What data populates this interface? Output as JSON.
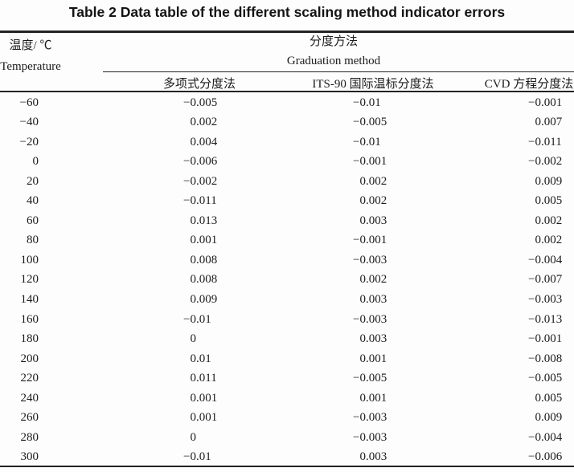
{
  "title": "Table 2 Data table of the different scaling method indicator errors",
  "colors": {
    "text": "#1c1c1c",
    "rule": "#232323",
    "bg": "#fdfdfd"
  },
  "table": {
    "temp_header_zh": "温度/ ℃",
    "temp_header_en": "Temperature",
    "spanner_zh": "分度方法",
    "spanner_en": "Graduation method",
    "method_columns": [
      "多项式分度法",
      "ITS-90 国际温标分度法",
      "CVD 方程分度法"
    ],
    "rows": [
      {
        "temp": "−60",
        "values": [
          "−0.005",
          "−0.01",
          "−0.001"
        ]
      },
      {
        "temp": "−40",
        "values": [
          "0.002",
          "−0.005",
          "0.007"
        ]
      },
      {
        "temp": "−20",
        "values": [
          "0.004",
          "−0.01",
          "−0.011"
        ]
      },
      {
        "temp": "0",
        "values": [
          "−0.006",
          "−0.001",
          "−0.002"
        ]
      },
      {
        "temp": "20",
        "values": [
          "−0.002",
          "0.002",
          "0.009"
        ]
      },
      {
        "temp": "40",
        "values": [
          "−0.011",
          "0.002",
          "0.005"
        ]
      },
      {
        "temp": "60",
        "values": [
          "0.013",
          "0.003",
          "0.002"
        ]
      },
      {
        "temp": "80",
        "values": [
          "0.001",
          "−0.001",
          "0.002"
        ]
      },
      {
        "temp": "100",
        "values": [
          "0.008",
          "−0.003",
          "−0.004"
        ]
      },
      {
        "temp": "120",
        "values": [
          "0.008",
          "0.002",
          "−0.007"
        ]
      },
      {
        "temp": "140",
        "values": [
          "0.009",
          "0.003",
          "−0.003"
        ]
      },
      {
        "temp": "160",
        "values": [
          "−0.01",
          "−0.003",
          "−0.013"
        ]
      },
      {
        "temp": "180",
        "values": [
          "0",
          "0.003",
          "−0.001"
        ]
      },
      {
        "temp": "200",
        "values": [
          "0.01",
          "0.001",
          "−0.008"
        ]
      },
      {
        "temp": "220",
        "values": [
          "0.011",
          "−0.005",
          "−0.005"
        ]
      },
      {
        "temp": "240",
        "values": [
          "0.001",
          "0.001",
          "0.005"
        ]
      },
      {
        "temp": "260",
        "values": [
          "0.001",
          "−0.003",
          "0.009"
        ]
      },
      {
        "temp": "280",
        "values": [
          "0",
          "−0.003",
          "−0.004"
        ]
      },
      {
        "temp": "300",
        "values": [
          "−0.01",
          "0.003",
          "−0.006"
        ]
      }
    ]
  }
}
